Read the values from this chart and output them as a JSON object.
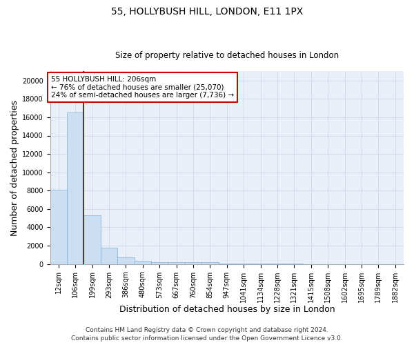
{
  "title": "55, HOLLYBUSH HILL, LONDON, E11 1PX",
  "subtitle": "Size of property relative to detached houses in London",
  "xlabel": "Distribution of detached houses by size in London",
  "ylabel": "Number of detached properties",
  "bar_labels": [
    "12sqm",
    "106sqm",
    "199sqm",
    "293sqm",
    "386sqm",
    "480sqm",
    "573sqm",
    "667sqm",
    "760sqm",
    "854sqm",
    "947sqm",
    "1041sqm",
    "1134sqm",
    "1228sqm",
    "1321sqm",
    "1415sqm",
    "1508sqm",
    "1602sqm",
    "1695sqm",
    "1789sqm",
    "1882sqm"
  ],
  "bar_values": [
    8100,
    16500,
    5300,
    1750,
    750,
    380,
    230,
    200,
    170,
    200,
    60,
    30,
    20,
    15,
    10,
    8,
    6,
    5,
    4,
    3,
    2
  ],
  "bar_color": "#ccdff2",
  "bar_edge_color": "#7fb0d8",
  "red_line_x": 1.5,
  "annotation_text": "55 HOLLYBUSH HILL: 206sqm\n← 76% of detached houses are smaller (25,070)\n24% of semi-detached houses are larger (7,736) →",
  "annotation_box_color": "#ffffff",
  "annotation_box_edge_color": "#cc0000",
  "red_line_color": "#cc0000",
  "ylim": [
    0,
    21000
  ],
  "yticks": [
    0,
    2000,
    4000,
    6000,
    8000,
    10000,
    12000,
    14000,
    16000,
    18000,
    20000
  ],
  "grid_color": "#cdd8ea",
  "background_color": "#e8eff8",
  "footer_line1": "Contains HM Land Registry data © Crown copyright and database right 2024.",
  "footer_line2": "Contains public sector information licensed under the Open Government Licence v3.0.",
  "title_fontsize": 10,
  "subtitle_fontsize": 8.5,
  "axis_label_fontsize": 9,
  "tick_fontsize": 7,
  "annotation_fontsize": 7.5,
  "footer_fontsize": 6.5
}
